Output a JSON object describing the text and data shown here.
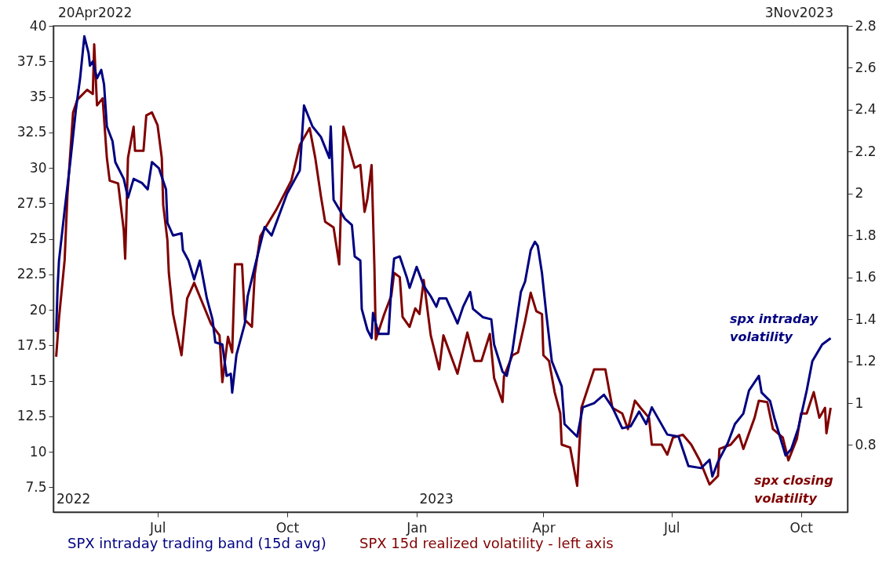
{
  "chart_data": {
    "type": "line",
    "annotations": [
      "20Apr2022",
      "3Nov2023",
      "2022",
      "2023",
      "spx intraday\nvolatility",
      "spx closing\nvolatility"
    ],
    "x": [
      "2022-04-20",
      "2022-04-21",
      "2022-04-22",
      "2022-04-26",
      "2022-04-30",
      "2022-05-04",
      "2022-05-07",
      "2022-05-10",
      "2022-05-13",
      "2022-05-14",
      "2022-05-16",
      "2022-05-19",
      "2022-05-22",
      "2022-05-24",
      "2022-05-26",
      "2022-05-30",
      "2022-06-01",
      "2022-06-07",
      "2022-06-10",
      "2022-06-14",
      "2022-06-20",
      "2022-06-24",
      "2022-06-27",
      "2022-07-02",
      "2022-07-07",
      "2022-07-08",
      "2022-07-12",
      "2022-07-18",
      "2022-07-19",
      "2022-07-23",
      "2022-07-27",
      "2022-07-31",
      "2022-08-05",
      "2022-08-09",
      "2022-08-11",
      "2022-08-16",
      "2022-08-19",
      "2022-08-22",
      "2022-08-23",
      "2022-08-26",
      "2022-09-01",
      "2022-09-03",
      "2022-09-08",
      "2022-09-15",
      "2022-09-20",
      "2022-10-01",
      "2022-10-10",
      "2022-10-13",
      "2022-10-19",
      "2022-10-25",
      "2022-10-31",
      "2022-11-01",
      "2022-11-03",
      "2022-11-11",
      "2022-11-16",
      "2022-11-18",
      "2022-11-22",
      "2022-11-23",
      "2022-11-27",
      "2022-11-30",
      "2022-12-01",
      "2022-12-05",
      "2022-12-12",
      "2022-12-14",
      "2022-12-16",
      "2022-12-20",
      "2022-12-25",
      "2022-12-27",
      "2023-01-01",
      "2023-01-06",
      "2023-01-11",
      "2023-01-15",
      "2023-01-17",
      "2023-01-22",
      "2023-01-30",
      "2023-02-03",
      "2023-02-08",
      "2023-02-10",
      "2023-02-17",
      "2023-02-23",
      "2023-02-25",
      "2023-03-03",
      "2023-03-06",
      "2023-03-10",
      "2023-03-16",
      "2023-03-19",
      "2023-03-23",
      "2023-03-26",
      "2023-03-28",
      "2023-03-31",
      "2023-04-03",
      "2023-04-07",
      "2023-04-14",
      "2023-04-16",
      "2023-04-25",
      "2023-04-29",
      "2023-05-07",
      "2023-05-14",
      "2023-05-20",
      "2023-05-27",
      "2023-06-02",
      "2023-06-08",
      "2023-06-13",
      "2023-06-17",
      "2023-06-28",
      "2023-07-06",
      "2023-07-13",
      "2023-07-22",
      "2023-07-28",
      "2023-07-30",
      "2023-08-03",
      "2023-08-10",
      "2023-08-15",
      "2023-08-21",
      "2023-08-25",
      "2023-09-01",
      "2023-09-03",
      "2023-09-09",
      "2023-09-12",
      "2023-09-20",
      "2023-09-24",
      "2023-09-29",
      "2023-10-05",
      "2023-10-09",
      "2023-10-16",
      "2023-10-22"
    ],
    "series": [
      {
        "name": "SPX intraday trading band (15d avg)",
        "color": "#000080",
        "axis": "y2",
        "values": [
          1.34,
          1.55,
          1.68,
          1.92,
          2.15,
          2.4,
          2.55,
          2.75,
          2.67,
          2.61,
          2.63,
          2.55,
          2.59,
          2.52,
          2.32,
          2.25,
          2.15,
          2.07,
          1.98,
          2.07,
          2.05,
          2.02,
          2.15,
          2.12,
          2.02,
          1.86,
          1.8,
          1.81,
          1.73,
          1.68,
          1.59,
          1.68,
          1.5,
          1.4,
          1.29,
          1.28,
          1.13,
          1.14,
          1.05,
          1.23,
          1.38,
          1.51,
          1.65,
          1.84,
          1.8,
          2.0,
          2.11,
          2.42,
          2.32,
          2.27,
          2.17,
          2.32,
          1.97,
          1.88,
          1.85,
          1.7,
          1.68,
          1.45,
          1.35,
          1.31,
          1.43,
          1.33,
          1.33,
          1.55,
          1.69,
          1.7,
          1.6,
          1.55,
          1.65,
          1.56,
          1.51,
          1.46,
          1.5,
          1.5,
          1.38,
          1.46,
          1.53,
          1.45,
          1.41,
          1.4,
          1.28,
          1.15,
          1.13,
          1.25,
          1.53,
          1.58,
          1.73,
          1.77,
          1.75,
          1.62,
          1.43,
          1.2,
          1.08,
          0.9,
          0.84,
          0.98,
          1.0,
          1.04,
          0.98,
          0.88,
          0.89,
          0.96,
          0.9,
          0.98,
          0.85,
          0.84,
          0.7,
          0.69,
          0.73,
          0.65,
          0.72,
          0.81,
          0.9,
          0.95,
          1.06,
          1.13,
          1.05,
          1.01,
          0.93,
          0.75,
          0.78,
          0.88,
          1.06,
          1.2,
          1.28,
          1.31
        ]
      },
      {
        "name": "SPX 15d realized volatility - left axis",
        "color": "#800000",
        "x": [
          "2022-04-20",
          "2022-04-22",
          "2022-04-26",
          "2022-04-28",
          "2022-05-02",
          "2022-05-05",
          "2022-05-12",
          "2022-05-16",
          "2022-05-17",
          "2022-05-19",
          "2022-05-23",
          "2022-05-26",
          "2022-05-28",
          "2022-06-03",
          "2022-06-07",
          "2022-06-08",
          "2022-06-10",
          "2022-06-14",
          "2022-06-15",
          "2022-06-21",
          "2022-06-23",
          "2022-06-27",
          "2022-07-01",
          "2022-07-04",
          "2022-07-05",
          "2022-07-08",
          "2022-07-09",
          "2022-07-12",
          "2022-07-18",
          "2022-07-22",
          "2022-07-27",
          "2022-08-08",
          "2022-08-14",
          "2022-08-16",
          "2022-08-20",
          "2022-08-23",
          "2022-08-25",
          "2022-08-30",
          "2022-09-01",
          "2022-09-06",
          "2022-09-08",
          "2022-09-12",
          "2022-09-23",
          "2022-10-04",
          "2022-10-10",
          "2022-10-17",
          "2022-10-21",
          "2022-10-25",
          "2022-10-28",
          "2022-11-03",
          "2022-11-07",
          "2022-11-10",
          "2022-11-18",
          "2022-11-22",
          "2022-11-25",
          "2022-11-27",
          "2022-11-30",
          "2022-12-02",
          "2022-12-03",
          "2022-12-09",
          "2022-12-14",
          "2022-12-16",
          "2022-12-20",
          "2022-12-22",
          "2022-12-27",
          "2022-12-31",
          "2023-01-03",
          "2023-01-06",
          "2023-01-11",
          "2023-01-17",
          "2023-01-20",
          "2023-01-30",
          "2023-02-06",
          "2023-02-11",
          "2023-02-16",
          "2023-02-22",
          "2023-02-25",
          "2023-03-03",
          "2023-03-04",
          "2023-03-10",
          "2023-03-14",
          "2023-03-19",
          "2023-03-23",
          "2023-03-27",
          "2023-03-31",
          "2023-04-01",
          "2023-04-05",
          "2023-04-09",
          "2023-04-13",
          "2023-04-14",
          "2023-04-20",
          "2023-04-25",
          "2023-04-28",
          "2023-05-07",
          "2023-05-15",
          "2023-05-20",
          "2023-05-27",
          "2023-05-31",
          "2023-06-05",
          "2023-06-09",
          "2023-06-15",
          "2023-06-17",
          "2023-06-24",
          "2023-06-28",
          "2023-07-02",
          "2023-07-09",
          "2023-07-15",
          "2023-07-21",
          "2023-07-28",
          "2023-08-03",
          "2023-08-04",
          "2023-08-12",
          "2023-08-18",
          "2023-08-21",
          "2023-08-29",
          "2023-09-01",
          "2023-09-07",
          "2023-09-11",
          "2023-09-18",
          "2023-09-22",
          "2023-09-28",
          "2023-10-01",
          "2023-10-05",
          "2023-10-10",
          "2023-10-14",
          "2023-10-18",
          "2023-10-19",
          "2023-10-22"
        ],
        "values": [
          16.7,
          19.4,
          23.5,
          28.1,
          33.9,
          34.8,
          35.5,
          35.2,
          38.7,
          34.4,
          34.9,
          30.7,
          29.1,
          28.9,
          25.6,
          23.6,
          30.7,
          32.9,
          31.2,
          31.2,
          33.7,
          33.9,
          33.0,
          30.7,
          27.4,
          24.9,
          22.6,
          19.7,
          16.8,
          20.8,
          21.9,
          19.0,
          18.2,
          14.9,
          18.1,
          17.0,
          23.2,
          23.2,
          19.3,
          18.8,
          22.5,
          25.2,
          27.0,
          29.1,
          31.6,
          32.8,
          30.7,
          28.0,
          26.2,
          25.8,
          23.2,
          32.9,
          30.0,
          30.2,
          26.9,
          27.8,
          30.2,
          23.0,
          17.9,
          19.7,
          21.0,
          22.6,
          22.3,
          19.5,
          18.8,
          20.1,
          19.7,
          22.1,
          18.2,
          15.8,
          18.2,
          15.5,
          18.4,
          16.4,
          16.4,
          18.3,
          15.2,
          13.5,
          15.3,
          16.8,
          17.0,
          19.2,
          21.2,
          19.9,
          19.7,
          16.8,
          16.4,
          14.2,
          12.7,
          10.5,
          10.3,
          7.6,
          13.1,
          15.8,
          15.8,
          13.1,
          12.7,
          11.6,
          13.6,
          13.1,
          12.4,
          10.5,
          10.5,
          9.8,
          11.0,
          11.2,
          10.5,
          9.4,
          7.7,
          8.3,
          10.2,
          10.5,
          11.2,
          10.2,
          12.4,
          13.6,
          13.5,
          11.6,
          11.0,
          9.4,
          10.9,
          12.7,
          12.7,
          14.2,
          12.4,
          13.1,
          11.3,
          13.1
        ]
      }
    ],
    "xlim": [
      "2022-04-18",
      "2023-11-03"
    ],
    "xticks": [
      {
        "value": "2022-07-01",
        "label": "Jul"
      },
      {
        "value": "2022-10-01",
        "label": "Oct"
      },
      {
        "value": "2023-01-01",
        "label": "Jan"
      },
      {
        "value": "2023-04-01",
        "label": "Apr"
      },
      {
        "value": "2023-07-01",
        "label": "Jul"
      },
      {
        "value": "2023-10-01",
        "label": "Oct"
      }
    ],
    "ylim": [
      5.75,
      40
    ],
    "yticks": [
      7.5,
      10,
      12.5,
      15,
      17.5,
      20,
      22.5,
      25,
      27.5,
      30,
      32.5,
      35,
      37.5,
      40
    ],
    "y2lim": [
      0.48,
      2.8
    ],
    "y2ticks": [
      0.8,
      1,
      1.2,
      1.4,
      1.6,
      1.8,
      2,
      2.2,
      2.4,
      2.6,
      2.8
    ],
    "legend": "bottom"
  }
}
